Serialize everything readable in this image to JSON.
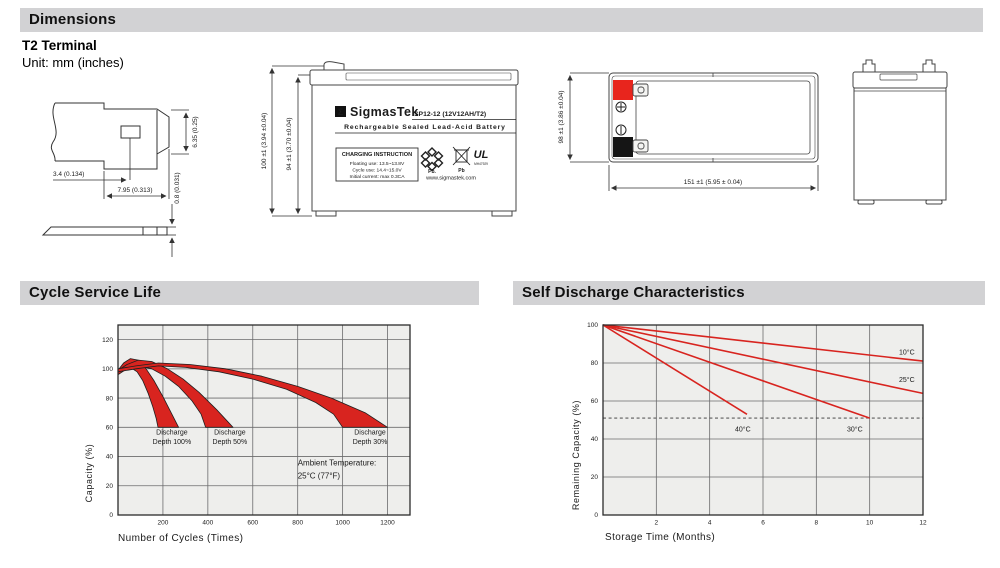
{
  "header": {
    "title": "Dimensions"
  },
  "terminal_section": {
    "heading": "T2 Terminal",
    "unit": "Unit: mm (inches)"
  },
  "terminal_drawing": {
    "dim_height": "6.35 (0.25)",
    "dim_offset": "3.4 (0.134)",
    "dim_width": "7.95 (0.313)",
    "dim_thickness": "0.8 (0.031)"
  },
  "front_view": {
    "dim_total_height": "100 ±1 (3.94 ±0.04)",
    "dim_case_height": "94 ±1 (3.70 ±0.04)",
    "logo_glyph": "Σ",
    "brand": "SigmasTek",
    "model": "SP12-12 (12V12AH/T2)",
    "battery_type": "Rechargeable Sealed Lead-Acid Battery",
    "charging_title": "CHARGING INSTRUCTION",
    "charging_line1": "Floating use: 13.5~13.8V",
    "charging_line2": "Cycle use: 14.4~15.0V",
    "charging_line3": "Initial current: max 0.3CA",
    "recycle_pb": "Pb.",
    "bin_pb": "Pb",
    "ul_text": "UL",
    "ul_number": "MH47929",
    "website": "www.sigmastek.com"
  },
  "top_view": {
    "dim_depth": "98 ±1 (3.86 ±0.04)",
    "dim_width": "151 ±1 (5.95 ± 0.04)"
  },
  "cycle_section": {
    "title": "Cycle Service Life"
  },
  "self_discharge_section": {
    "title": "Self Discharge Characteristics"
  },
  "chart_data": [
    {
      "id": "cycle_service_life",
      "type": "area",
      "title": "Cycle Service Life",
      "xlabel": "Number of Cycles (Times)",
      "ylabel": "Capacity (%)",
      "xlim": [
        0,
        1300
      ],
      "ylim": [
        0,
        130
      ],
      "xticks": [
        200,
        400,
        600,
        800,
        1000,
        1200
      ],
      "yticks": [
        0,
        20,
        40,
        60,
        80,
        100,
        120
      ],
      "grid": true,
      "band_color": "#d8241f",
      "bands": [
        {
          "name": "Discharge Depth 100%",
          "upper": [
            [
              0,
              99
            ],
            [
              25,
              104
            ],
            [
              55,
              107
            ],
            [
              90,
              106
            ],
            [
              125,
              100
            ],
            [
              160,
              92
            ],
            [
              200,
              81
            ],
            [
              240,
              69
            ],
            [
              270,
              60
            ]
          ],
          "lower": [
            [
              0,
              96
            ],
            [
              25,
              99
            ],
            [
              55,
              101
            ],
            [
              85,
              98
            ],
            [
              110,
              92
            ],
            [
              135,
              83
            ],
            [
              155,
              74
            ],
            [
              170,
              66
            ],
            [
              178,
              60
            ]
          ]
        },
        {
          "name": "Discharge Depth 50%",
          "upper": [
            [
              0,
              99
            ],
            [
              40,
              103
            ],
            [
              90,
              106
            ],
            [
              150,
              105
            ],
            [
              220,
              100
            ],
            [
              290,
              93
            ],
            [
              360,
              84
            ],
            [
              440,
              72
            ],
            [
              512,
              60
            ]
          ],
          "lower": [
            [
              0,
              96
            ],
            [
              40,
              100
            ],
            [
              90,
              102
            ],
            [
              150,
              100
            ],
            [
              210,
              95
            ],
            [
              270,
              88
            ],
            [
              330,
              78
            ],
            [
              370,
              69
            ],
            [
              390,
              60
            ]
          ]
        },
        {
          "name": "Discharge Depth 30%",
          "upper": [
            [
              0,
              100
            ],
            [
              80,
              102
            ],
            [
              180,
              104
            ],
            [
              320,
              103
            ],
            [
              480,
              100
            ],
            [
              640,
              95
            ],
            [
              800,
              88
            ],
            [
              950,
              80
            ],
            [
              1100,
              70
            ],
            [
              1200,
              60
            ]
          ],
          "lower": [
            [
              0,
              98
            ],
            [
              80,
              100
            ],
            [
              180,
              102
            ],
            [
              300,
              101
            ],
            [
              450,
              98
            ],
            [
              600,
              93
            ],
            [
              750,
              86
            ],
            [
              880,
              77
            ],
            [
              960,
              69
            ],
            [
              1000,
              60
            ]
          ]
        }
      ],
      "band_labels": [
        {
          "lines": [
            "Discharge",
            "Depth 100%"
          ],
          "x": 240,
          "y": 55
        },
        {
          "lines": [
            "Discharge",
            "Depth 50%"
          ],
          "x": 498,
          "y": 55
        },
        {
          "lines": [
            "Discharge",
            "Depth 30%"
          ],
          "x": 1122,
          "y": 55
        }
      ],
      "annotation": {
        "lines": [
          "Ambient Temperature:",
          "25°C (77°F)"
        ],
        "x": 800,
        "y": 34
      }
    },
    {
      "id": "self_discharge",
      "type": "line",
      "title": "Self Discharge Characteristics",
      "xlabel": "Storage Time (Months)",
      "ylabel": "Remaining Capacity (%)",
      "xlim": [
        0,
        12
      ],
      "ylim": [
        0,
        100
      ],
      "xticks": [
        2,
        4,
        6,
        8,
        10,
        12
      ],
      "yticks": [
        0,
        20,
        40,
        60,
        80,
        100
      ],
      "grid": true,
      "line_color": "#d8241f",
      "dashed_y": 51,
      "series": [
        {
          "name": "10°C",
          "points": [
            [
              0,
              100
            ],
            [
              12,
              81
            ]
          ],
          "label_x": 11.1,
          "label_y": 84.5
        },
        {
          "name": "25°C",
          "points": [
            [
              0,
              100
            ],
            [
              12,
              64
            ]
          ],
          "label_x": 11.1,
          "label_y": 70
        },
        {
          "name": "30°C",
          "points": [
            [
              0,
              100
            ],
            [
              10,
              51
            ]
          ],
          "label_x": 9.15,
          "label_y": 44
        },
        {
          "name": "40°C",
          "points": [
            [
              0,
              100
            ],
            [
              5.4,
              53
            ]
          ],
          "label_x": 4.95,
          "label_y": 44
        }
      ]
    }
  ]
}
